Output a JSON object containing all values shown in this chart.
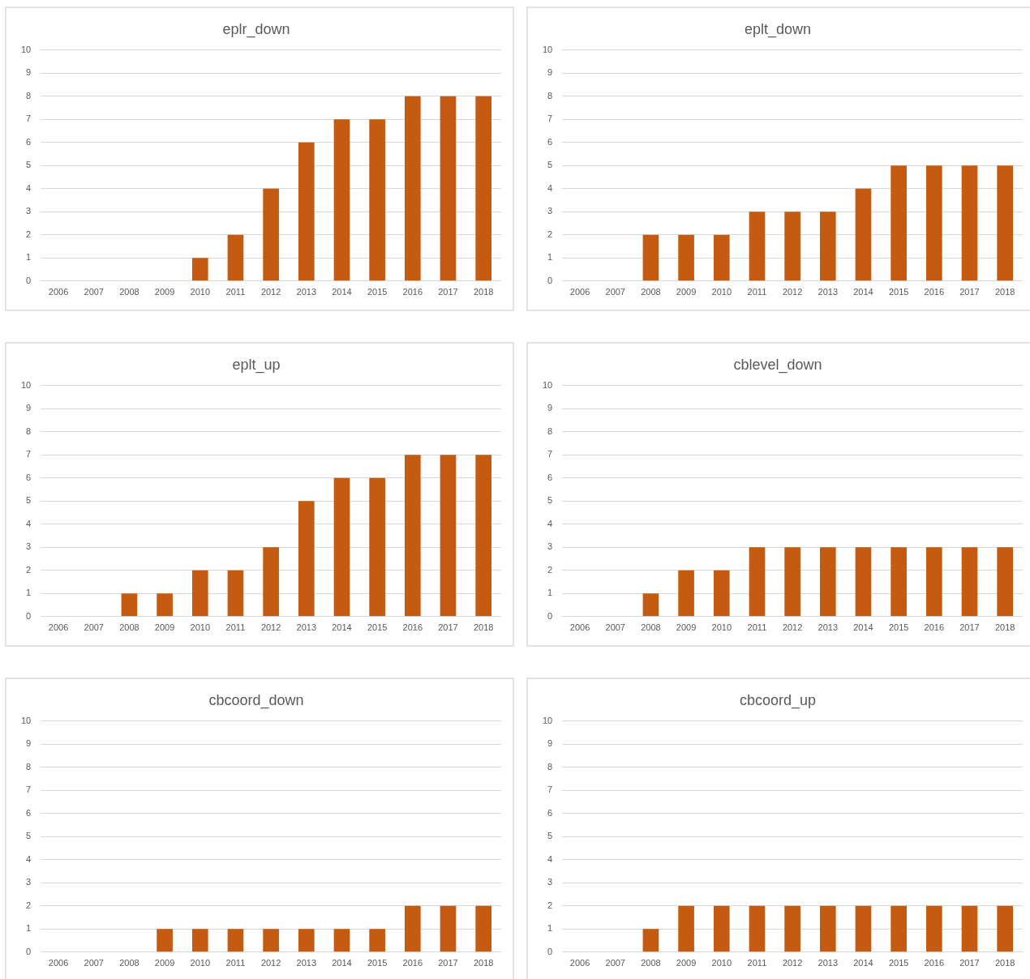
{
  "chart_data": [
    {
      "type": "bar",
      "title": "eplr_down",
      "categories": [
        "2006",
        "2007",
        "2008",
        "2009",
        "2010",
        "2011",
        "2012",
        "2013",
        "2014",
        "2015",
        "2016",
        "2017",
        "2018"
      ],
      "values": [
        0,
        0,
        0,
        0,
        1,
        2,
        4,
        6,
        7,
        7,
        8,
        8,
        8
      ],
      "color": "#c55a11",
      "ylim": [
        0,
        10
      ],
      "yticks": [
        0,
        1,
        2,
        3,
        4,
        5,
        6,
        7,
        8,
        9,
        10
      ],
      "grid": "y",
      "legend": false
    },
    {
      "type": "bar",
      "title": "eplt_down",
      "categories": [
        "2006",
        "2007",
        "2008",
        "2009",
        "2010",
        "2011",
        "2012",
        "2013",
        "2014",
        "2015",
        "2016",
        "2017",
        "2018"
      ],
      "values": [
        0,
        0,
        2,
        2,
        2,
        3,
        3,
        3,
        4,
        5,
        5,
        5,
        5
      ],
      "color": "#c55a11",
      "ylim": [
        0,
        10
      ],
      "yticks": [
        0,
        1,
        2,
        3,
        4,
        5,
        6,
        7,
        8,
        9,
        10
      ],
      "grid": "y",
      "legend": false
    },
    {
      "type": "bar",
      "title": "eplt_up",
      "categories": [
        "2006",
        "2007",
        "2008",
        "2009",
        "2010",
        "2011",
        "2012",
        "2013",
        "2014",
        "2015",
        "2016",
        "2017",
        "2018"
      ],
      "values": [
        0,
        0,
        1,
        1,
        2,
        2,
        3,
        5,
        6,
        6,
        7,
        7,
        7
      ],
      "color": "#c55a11",
      "ylim": [
        0,
        10
      ],
      "yticks": [
        0,
        1,
        2,
        3,
        4,
        5,
        6,
        7,
        8,
        9,
        10
      ],
      "grid": "y",
      "legend": false
    },
    {
      "type": "bar",
      "title": "cblevel_down",
      "categories": [
        "2006",
        "2007",
        "2008",
        "2009",
        "2010",
        "2011",
        "2012",
        "2013",
        "2014",
        "2015",
        "2016",
        "2017",
        "2018"
      ],
      "values": [
        0,
        0,
        1,
        2,
        2,
        3,
        3,
        3,
        3,
        3,
        3,
        3,
        3
      ],
      "color": "#c55a11",
      "ylim": [
        0,
        10
      ],
      "yticks": [
        0,
        1,
        2,
        3,
        4,
        5,
        6,
        7,
        8,
        9,
        10
      ],
      "grid": "y",
      "legend": false
    },
    {
      "type": "bar",
      "title": "cbcoord_down",
      "categories": [
        "2006",
        "2007",
        "2008",
        "2009",
        "2010",
        "2011",
        "2012",
        "2013",
        "2014",
        "2015",
        "2016",
        "2017",
        "2018"
      ],
      "values": [
        0,
        0,
        0,
        1,
        1,
        1,
        1,
        1,
        1,
        1,
        2,
        2,
        2
      ],
      "color": "#c55a11",
      "ylim": [
        0,
        10
      ],
      "yticks": [
        0,
        1,
        2,
        3,
        4,
        5,
        6,
        7,
        8,
        9,
        10
      ],
      "grid": "y",
      "legend": false
    },
    {
      "type": "bar",
      "title": "cbcoord_up",
      "categories": [
        "2006",
        "2007",
        "2008",
        "2009",
        "2010",
        "2011",
        "2012",
        "2013",
        "2014",
        "2015",
        "2016",
        "2017",
        "2018"
      ],
      "values": [
        0,
        0,
        1,
        2,
        2,
        2,
        2,
        2,
        2,
        2,
        2,
        2,
        2
      ],
      "color": "#c55a11",
      "ylim": [
        0,
        10
      ],
      "yticks": [
        0,
        1,
        2,
        3,
        4,
        5,
        6,
        7,
        8,
        9,
        10
      ],
      "grid": "y",
      "legend": false
    }
  ]
}
